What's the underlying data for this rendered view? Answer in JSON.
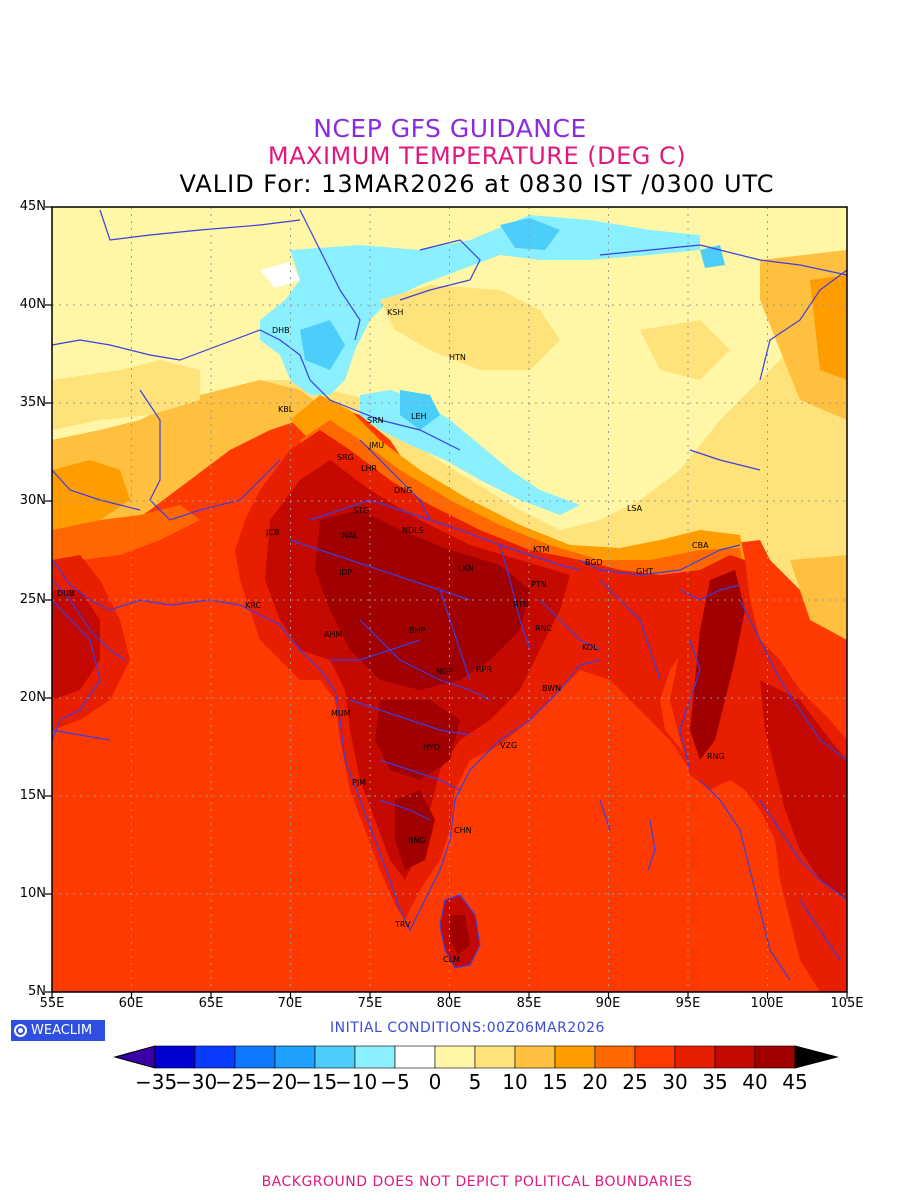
{
  "title": {
    "line1": "NCEP GFS GUIDANCE",
    "line2": "MAXIMUM TEMPERATURE (DEG C)",
    "line3": "VALID For: 13MAR2026 at 0830 IST /0300 UTC"
  },
  "map": {
    "lon_labels": [
      "55E",
      "60E",
      "65E",
      "70E",
      "75E",
      "80E",
      "85E",
      "90E",
      "95E",
      "100E",
      "105E"
    ],
    "lat_labels": [
      "45N",
      "40N",
      "35N",
      "30N",
      "25N",
      "20N",
      "15N",
      "10N",
      "5N"
    ],
    "cities": [
      {
        "code": "DHB"
      },
      {
        "code": "KSH"
      },
      {
        "code": "HTN"
      },
      {
        "code": "KBL"
      },
      {
        "code": "SRN"
      },
      {
        "code": "LEH"
      },
      {
        "code": "JMU"
      },
      {
        "code": "SRG"
      },
      {
        "code": "LHR"
      },
      {
        "code": "DNG"
      },
      {
        "code": "STG"
      },
      {
        "code": "JCB"
      },
      {
        "code": "NDLS"
      },
      {
        "code": "NAL"
      },
      {
        "code": "LSA"
      },
      {
        "code": "KTM"
      },
      {
        "code": "CBA"
      },
      {
        "code": "BGD"
      },
      {
        "code": "GHT"
      },
      {
        "code": "LKN"
      },
      {
        "code": "PTN"
      },
      {
        "code": "JDP"
      },
      {
        "code": "DUB"
      },
      {
        "code": "KRC"
      },
      {
        "code": "RTN"
      },
      {
        "code": "AHM"
      },
      {
        "code": "BHP"
      },
      {
        "code": "RNC"
      },
      {
        "code": "KOL"
      },
      {
        "code": "NGP"
      },
      {
        "code": "RPR"
      },
      {
        "code": "BWN"
      },
      {
        "code": "MUM"
      },
      {
        "code": "HYD"
      },
      {
        "code": "VZG"
      },
      {
        "code": "RNG"
      },
      {
        "code": "PJM"
      },
      {
        "code": "CHN"
      },
      {
        "code": "BNG"
      },
      {
        "code": "TRV"
      },
      {
        "code": "CLM"
      }
    ]
  },
  "logo": {
    "text": "WEACLIM"
  },
  "initial_conditions": "INITIAL CONDITIONS:00Z06MAR2026",
  "colorbar": {
    "labels": [
      "-35",
      "-30",
      "-25",
      "-20",
      "-15",
      "-10",
      "-5",
      "0",
      "5",
      "10",
      "15",
      "20",
      "25",
      "30",
      "35",
      "40",
      "45"
    ],
    "colors": [
      "#3a00a8",
      "#0000d0",
      "#0a3cff",
      "#0f78ff",
      "#1ea0ff",
      "#4ccdfa",
      "#8af0ff",
      "#ffffff",
      "#fff6a6",
      "#ffe27a",
      "#ffc040",
      "#ff9c00",
      "#ff6800",
      "#ff3a00",
      "#e81e00",
      "#c40a00",
      "#a00000",
      "#000000"
    ]
  },
  "footer": "BACKGROUND DOES NOT DEPICT POLITICAL BOUNDARIES"
}
